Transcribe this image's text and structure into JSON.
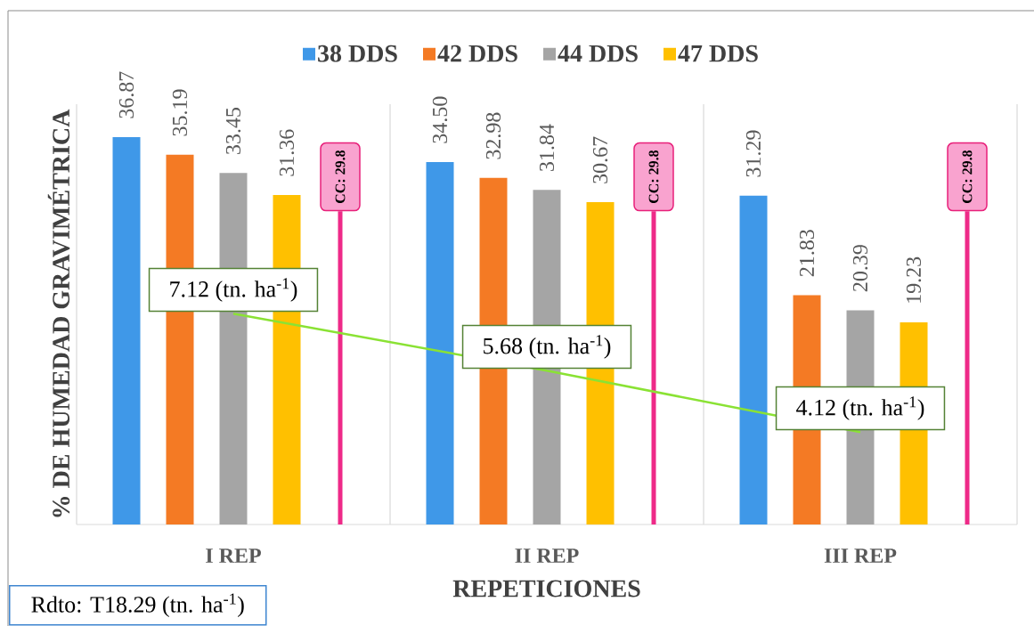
{
  "chart_data": {
    "type": "bar",
    "xlabel": "REPETICIONES",
    "ylabel": "% DE HUMEDAD GRAVIMÉTRICA",
    "categories": [
      "I REP",
      "II REP",
      "III REP"
    ],
    "series": [
      {
        "name": "38 DDS",
        "color": "#3f98e8",
        "values": [
          36.87,
          34.5,
          31.29
        ],
        "value_labels": [
          "36.87",
          "34.50",
          "31.29"
        ]
      },
      {
        "name": "42 DDS",
        "color": "#f47a24",
        "values": [
          35.19,
          32.98,
          21.83
        ],
        "value_labels": [
          "35.19",
          "32.98",
          "21.83"
        ]
      },
      {
        "name": "44 DDS",
        "color": "#a5a5a5",
        "values": [
          33.45,
          31.84,
          20.39
        ],
        "value_labels": [
          "33.45",
          "31.84",
          "20.39"
        ]
      },
      {
        "name": "47 DDS",
        "color": "#ffc000",
        "values": [
          31.36,
          30.67,
          19.23
        ],
        "value_labels": [
          "31.36",
          "30.67",
          "19.23"
        ]
      },
      {
        "color": "#ee2a88",
        "values": [
          29.8,
          29.8,
          29.8
        ],
        "value_labels": [
          "CC: 29.8",
          "CC: 29.8",
          "CC: 29.8"
        ]
      },
      {
        "type": "line",
        "axis": "y2",
        "color": "#8ae234",
        "values": [
          7.12,
          5.68,
          4.12
        ],
        "value_labels": [
          "7.12 (tn. ha$^{-1}$)",
          "5.68 (tn. ha$^{-1}$)",
          "4.12 (tn. ha$^{-1}$)"
        ]
      }
    ],
    "ylim": [
      0,
      40
    ],
    "grid": "x",
    "legend": "top",
    "tick_labels": "x",
    "annotations": [
      "Rdto: T18.29 (tn. ha$^{-1}$)"
    ]
  }
}
